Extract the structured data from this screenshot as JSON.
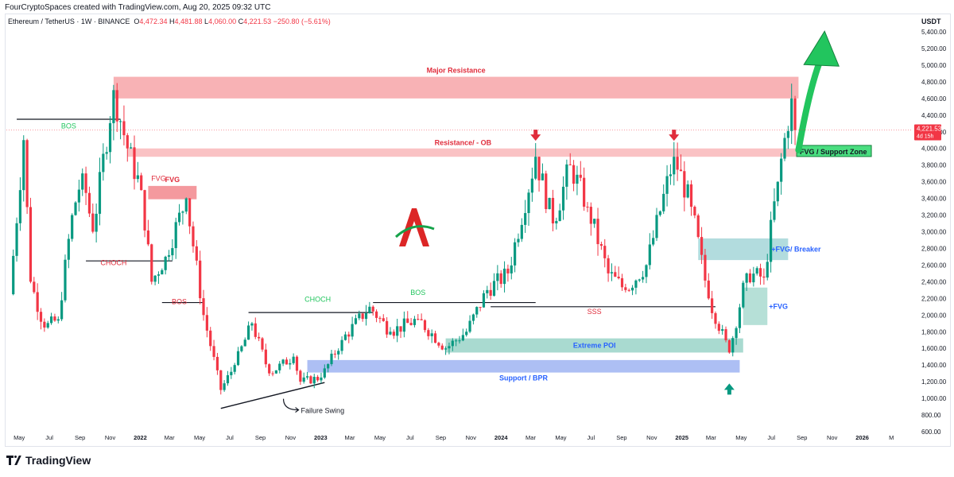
{
  "header": {
    "credit": "FourCryptoSpaces created with TradingView.com, Aug 20, 2025 09:32 UTC",
    "symbol": "Ethereum / TetherUS · 1W · BINANCE",
    "open_label": "O",
    "open": "4,472.34",
    "high_label": "H",
    "high": "4,481.88",
    "low_label": "L",
    "low": "4,060.00",
    "close_label": "C",
    "close": "4,221.53",
    "change": "−250.80 (−5.61%)",
    "unit": "USDT"
  },
  "footer": {
    "brand": "TradingView"
  },
  "chart_data": {
    "type": "candlestick",
    "price_axis": {
      "min": 600,
      "max": 5400,
      "ticks": [
        "600.00",
        "800.00",
        "1,000.00",
        "1,200.00",
        "1,400.00",
        "1,600.00",
        "1,800.00",
        "2,000.00",
        "2,200.00",
        "2,400.00",
        "2,600.00",
        "2,800.00",
        "3,000.00",
        "3,200.00",
        "3,400.00",
        "3,600.00",
        "3,800.00",
        "4,000.00",
        "4,200.00",
        "4,400.00",
        "4,600.00",
        "4,800.00",
        "5,000.00",
        "5,200.00",
        "5,400.00"
      ],
      "current_price": "4,221.53",
      "current_countdown": "4d 15h"
    },
    "time_axis": {
      "start": "2021-04-05",
      "end": "2026-04-13",
      "ticks": [
        {
          "label": "May",
          "date": "2021-05-01",
          "bold": false
        },
        {
          "label": "Jul",
          "date": "2021-07-01",
          "bold": false
        },
        {
          "label": "Sep",
          "date": "2021-09-01",
          "bold": false
        },
        {
          "label": "Nov",
          "date": "2021-11-01",
          "bold": false
        },
        {
          "label": "2022",
          "date": "2022-01-01",
          "bold": true
        },
        {
          "label": "Mar",
          "date": "2022-03-01",
          "bold": false
        },
        {
          "label": "May",
          "date": "2022-05-01",
          "bold": false
        },
        {
          "label": "Jul",
          "date": "2022-07-01",
          "bold": false
        },
        {
          "label": "Sep",
          "date": "2022-09-01",
          "bold": false
        },
        {
          "label": "Nov",
          "date": "2022-11-01",
          "bold": false
        },
        {
          "label": "2023",
          "date": "2023-01-01",
          "bold": true
        },
        {
          "label": "Mar",
          "date": "2023-03-01",
          "bold": false
        },
        {
          "label": "May",
          "date": "2023-05-01",
          "bold": false
        },
        {
          "label": "Jul",
          "date": "2023-07-01",
          "bold": false
        },
        {
          "label": "Sep",
          "date": "2023-09-01",
          "bold": false
        },
        {
          "label": "Nov",
          "date": "2023-11-01",
          "bold": false
        },
        {
          "label": "2024",
          "date": "2024-01-01",
          "bold": true
        },
        {
          "label": "Mar",
          "date": "2024-03-01",
          "bold": false
        },
        {
          "label": "May",
          "date": "2024-05-01",
          "bold": false
        },
        {
          "label": "Jul",
          "date": "2024-07-01",
          "bold": false
        },
        {
          "label": "Sep",
          "date": "2024-09-01",
          "bold": false
        },
        {
          "label": "Nov",
          "date": "2024-11-01",
          "bold": false
        },
        {
          "label": "2025",
          "date": "2025-01-01",
          "bold": true
        },
        {
          "label": "Mar",
          "date": "2025-03-01",
          "bold": false
        },
        {
          "label": "May",
          "date": "2025-05-01",
          "bold": false
        },
        {
          "label": "Jul",
          "date": "2025-07-01",
          "bold": false
        },
        {
          "label": "Sep",
          "date": "2025-09-01",
          "bold": false
        },
        {
          "label": "Nov",
          "date": "2025-11-01",
          "bold": false
        },
        {
          "label": "2026",
          "date": "2026-01-01",
          "bold": true
        },
        {
          "label": "M",
          "date": "2026-03-01",
          "bold": false
        }
      ]
    },
    "colors": {
      "up": "#089981",
      "down": "#f23645"
    },
    "series": [
      {
        "name": "ETH/USDT weekly",
        "points": [
          {
            "date": "2021-04-12",
            "close": 2250
          },
          {
            "date": "2021-05-10",
            "close": 4100
          },
          {
            "date": "2021-05-24",
            "close": 2400
          },
          {
            "date": "2021-06-21",
            "close": 1850
          },
          {
            "date": "2021-07-19",
            "close": 1950
          },
          {
            "date": "2021-08-16",
            "close": 3200
          },
          {
            "date": "2021-09-06",
            "close": 3700
          },
          {
            "date": "2021-09-27",
            "close": 3000
          },
          {
            "date": "2021-11-08",
            "close": 4700
          },
          {
            "date": "2021-12-06",
            "close": 4000
          },
          {
            "date": "2022-01-03",
            "close": 3500
          },
          {
            "date": "2022-01-24",
            "close": 2400
          },
          {
            "date": "2022-02-21",
            "close": 2700
          },
          {
            "date": "2022-04-04",
            "close": 3400
          },
          {
            "date": "2022-05-09",
            "close": 2000
          },
          {
            "date": "2022-06-13",
            "close": 1100
          },
          {
            "date": "2022-07-11",
            "close": 1400
          },
          {
            "date": "2022-08-15",
            "close": 1900
          },
          {
            "date": "2022-09-19",
            "close": 1300
          },
          {
            "date": "2022-11-07",
            "close": 1500
          },
          {
            "date": "2022-11-21",
            "close": 1200
          },
          {
            "date": "2023-01-02",
            "close": 1250
          },
          {
            "date": "2023-02-13",
            "close": 1700
          },
          {
            "date": "2023-04-10",
            "close": 2100
          },
          {
            "date": "2023-05-22",
            "close": 1800
          },
          {
            "date": "2023-07-17",
            "close": 1950
          },
          {
            "date": "2023-09-11",
            "close": 1600
          },
          {
            "date": "2023-10-23",
            "close": 1800
          },
          {
            "date": "2023-12-04",
            "close": 2300
          },
          {
            "date": "2024-01-15",
            "close": 2500
          },
          {
            "date": "2024-03-11",
            "close": 3900
          },
          {
            "date": "2024-04-15",
            "close": 3100
          },
          {
            "date": "2024-05-20",
            "close": 3800
          },
          {
            "date": "2024-06-24",
            "close": 3300
          },
          {
            "date": "2024-08-05",
            "close": 2500
          },
          {
            "date": "2024-09-09",
            "close": 2300
          },
          {
            "date": "2024-10-21",
            "close": 2600
          },
          {
            "date": "2024-12-16",
            "close": 3900
          },
          {
            "date": "2025-01-20",
            "close": 3300
          },
          {
            "date": "2025-02-24",
            "close": 2200
          },
          {
            "date": "2025-04-07",
            "close": 1550
          },
          {
            "date": "2025-05-12",
            "close": 2500
          },
          {
            "date": "2025-06-16",
            "close": 2450
          },
          {
            "date": "2025-07-14",
            "close": 3600
          },
          {
            "date": "2025-08-11",
            "close": 4600
          },
          {
            "date": "2025-08-18",
            "close": 4221.53
          }
        ]
      }
    ],
    "zones": [
      {
        "label": "Major Resistance",
        "from": "2021-11-08",
        "to": "2025-08-25",
        "low": 4600,
        "high": 4860,
        "color": "#f7a5a8",
        "label_color": "#e02d3c"
      },
      {
        "label": "Resistance/ - OB",
        "from": "2021-12-06",
        "to": "2025-08-25",
        "low": 3900,
        "high": 4000,
        "color": "#f9b7ba",
        "label_color": "#e02d3c"
      },
      {
        "label": "FVG",
        "from": "2022-01-17",
        "to": "2022-04-25",
        "low": 3390,
        "high": 3550,
        "color": "#f2878d",
        "label_color": "#e02d3c"
      },
      {
        "label": "Extreme POI",
        "from": "2023-09-11",
        "to": "2025-05-05",
        "low": 1550,
        "high": 1720,
        "color": "#9ad4c8",
        "label_color": "#2962ff"
      },
      {
        "label": "Support / BPR",
        "from": "2022-12-05",
        "to": "2025-04-28",
        "low": 1310,
        "high": 1460,
        "color": "#9fb4f2",
        "label_color": "#2962ff"
      },
      {
        "label": "+FVG/ Breaker",
        "from": "2025-02-03",
        "to": "2025-08-04",
        "low": 2660,
        "high": 2920,
        "color": "#a5d6d8",
        "label_color": "#2962ff"
      },
      {
        "label": "+FVG",
        "from": "2025-05-05",
        "to": "2025-06-23",
        "low": 1880,
        "high": 2330,
        "color": "#a9dbd0",
        "label_color": "#2962ff"
      }
    ],
    "annotations": [
      {
        "text": "BOS",
        "date": "2021-08-09",
        "price": 4240,
        "color": "#22c55e"
      },
      {
        "text": "CHOCH",
        "date": "2021-11-08",
        "price": 2600,
        "color": "#e02d3c"
      },
      {
        "text": "FVG",
        "date": "2022-02-07",
        "price": 3610,
        "color": "#e02d3c"
      },
      {
        "text": "BOS",
        "date": "2022-03-21",
        "price": 2130,
        "color": "#e02d3c"
      },
      {
        "text": "CHOCH",
        "date": "2022-12-26",
        "price": 2160,
        "color": "#22c55e"
      },
      {
        "text": "BOS",
        "date": "2023-07-17",
        "price": 2240,
        "color": "#22c55e"
      },
      {
        "text": "SSS",
        "date": "2024-07-08",
        "price": 2010,
        "color": "#e02d3c"
      },
      {
        "text": "Failure Swing",
        "date": "2022-12-05",
        "price": 900,
        "color": "#131722"
      },
      {
        "text": "FVG / Support Zone",
        "date": "2025-08-18",
        "price": 3960,
        "color": "#131722"
      }
    ],
    "structure_lines": [
      {
        "from": "2021-04-26",
        "to": "2021-11-22",
        "price": 4350
      },
      {
        "from": "2021-09-13",
        "to": "2022-03-07",
        "price": 2650
      },
      {
        "from": "2022-02-14",
        "to": "2022-05-09",
        "price": 2150
      },
      {
        "from": "2022-08-08",
        "to": "2023-04-17",
        "price": 2030
      },
      {
        "from": "2023-04-17",
        "to": "2024-03-11",
        "price": 2150
      },
      {
        "from": "2023-12-11",
        "to": "2025-03-10",
        "price": 2100
      }
    ],
    "trend_line": {
      "from": "2022-06-13",
      "to": "2023-01-09",
      "from_price": 880,
      "to_price": 1190
    },
    "markers": [
      {
        "type": "arrow-down",
        "date": "2024-03-11",
        "price": 4110,
        "color": "#e02d3c"
      },
      {
        "type": "arrow-down",
        "date": "2024-12-16",
        "price": 4110,
        "color": "#e02d3c"
      },
      {
        "type": "arrow-up",
        "date": "2025-04-07",
        "price": 1160,
        "color": "#089981"
      }
    ],
    "projection": {
      "from_date": "2025-08-25",
      "from_price": 3980,
      "to_date": "2025-10-20",
      "to_price": 5350,
      "color": "#22c55e"
    }
  }
}
